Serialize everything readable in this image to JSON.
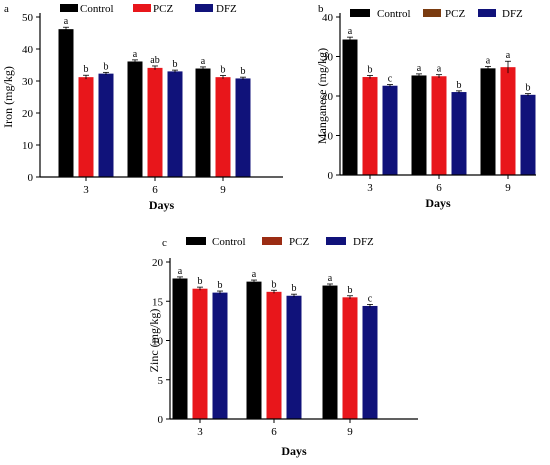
{
  "colors": {
    "Control": "#000000",
    "PCZ": "#e8161b",
    "PCZ_legend": "#7a3b10",
    "PCZ_legend_c": "#9b2c13",
    "DFZ": "#10127a",
    "axis": "#000000"
  },
  "chart_data": [
    {
      "panel": "a",
      "type": "bar",
      "categories": [
        "3",
        "6",
        "9"
      ],
      "xlabel": "Days",
      "ylabel": "Iron (mg/kg)",
      "ylim": [
        0,
        50
      ],
      "yticks": [
        0,
        10,
        20,
        30,
        40,
        50
      ],
      "series": [
        {
          "name": "Control",
          "values": [
            46.2,
            36.1,
            33.9
          ],
          "errors": [
            0.6,
            0.5,
            0.5
          ],
          "labels": [
            "a",
            "a",
            "a"
          ]
        },
        {
          "name": "PCZ",
          "values": [
            31.2,
            34.1,
            31.2
          ],
          "errors": [
            0.6,
            0.6,
            0.5
          ],
          "labels": [
            "b",
            "ab",
            "b"
          ]
        },
        {
          "name": "DFZ",
          "values": [
            32.3,
            33.0,
            30.8
          ],
          "errors": [
            0.4,
            0.4,
            0.4
          ],
          "labels": [
            "b",
            "b",
            "b"
          ]
        }
      ]
    },
    {
      "panel": "b",
      "type": "bar",
      "categories": [
        "3",
        "6",
        "9"
      ],
      "xlabel": "Days",
      "ylabel": "Manganese (mg/kg)",
      "ylim": [
        0,
        40
      ],
      "yticks": [
        0,
        10,
        20,
        30,
        40
      ],
      "series": [
        {
          "name": "Control",
          "values": [
            34.3,
            25.2,
            27.0
          ],
          "errors": [
            0.6,
            0.4,
            0.5
          ],
          "labels": [
            "a",
            "a",
            "a"
          ]
        },
        {
          "name": "PCZ",
          "values": [
            24.8,
            25.0,
            27.3
          ],
          "errors": [
            0.4,
            0.4,
            1.5
          ],
          "labels": [
            "b",
            "a",
            "a"
          ]
        },
        {
          "name": "DFZ",
          "values": [
            22.6,
            21.0,
            20.3
          ],
          "errors": [
            0.3,
            0.3,
            0.3
          ],
          "labels": [
            "c",
            "b",
            "b"
          ]
        }
      ]
    },
    {
      "panel": "c",
      "type": "bar",
      "categories": [
        "3",
        "6",
        "9"
      ],
      "xlabel": "Days",
      "ylabel": "Zinc (mg/kg)",
      "ylim": [
        0,
        20
      ],
      "yticks": [
        0,
        5,
        10,
        15,
        20
      ],
      "series": [
        {
          "name": "Control",
          "values": [
            17.9,
            17.5,
            17.0
          ],
          "errors": [
            0.2,
            0.2,
            0.2
          ],
          "labels": [
            "a",
            "a",
            "a"
          ]
        },
        {
          "name": "PCZ",
          "values": [
            16.6,
            16.2,
            15.5
          ],
          "errors": [
            0.2,
            0.2,
            0.2
          ],
          "labels": [
            "b",
            "b",
            "b"
          ]
        },
        {
          "name": "DFZ",
          "values": [
            16.1,
            15.7,
            14.4
          ],
          "errors": [
            0.2,
            0.2,
            0.2
          ],
          "labels": [
            "b",
            "b",
            "c"
          ]
        }
      ]
    }
  ]
}
